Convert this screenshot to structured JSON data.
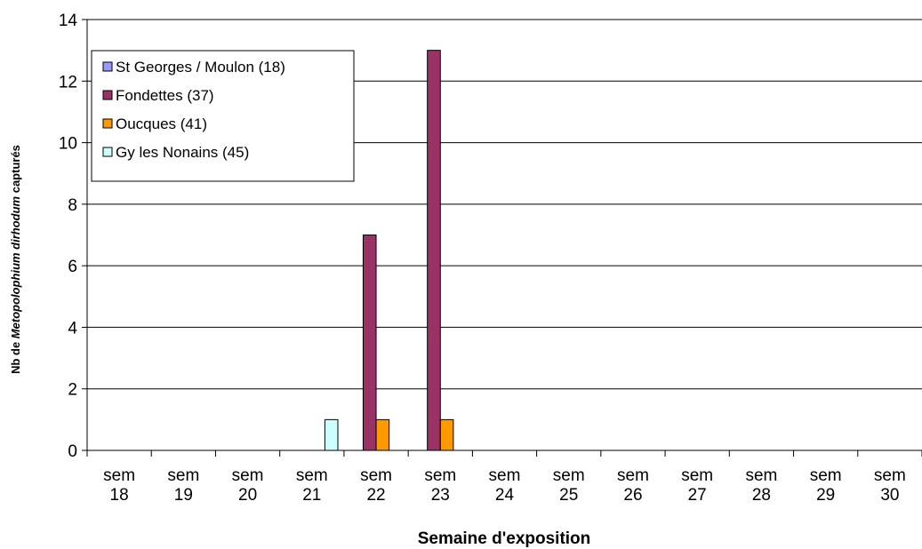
{
  "chart_data": {
    "type": "bar",
    "title": "",
    "xlabel": "Semaine d'exposition",
    "ylabel": {
      "prefix": "Nb de ",
      "italic": "Metopolophium dirhodum",
      "suffix": " capturés"
    },
    "ylim": [
      0,
      14
    ],
    "yticks": [
      0,
      2,
      4,
      6,
      8,
      10,
      12,
      14
    ],
    "grid": true,
    "legend_position": "top-left",
    "categories": [
      [
        "sem",
        "18"
      ],
      [
        "sem",
        "19"
      ],
      [
        "sem",
        "20"
      ],
      [
        "sem",
        "21"
      ],
      [
        "sem",
        "22"
      ],
      [
        "sem",
        "23"
      ],
      [
        "sem",
        "24"
      ],
      [
        "sem",
        "25"
      ],
      [
        "sem",
        "26"
      ],
      [
        "sem",
        "27"
      ],
      [
        "sem",
        "28"
      ],
      [
        "sem",
        "29"
      ],
      [
        "sem",
        "30"
      ]
    ],
    "series": [
      {
        "name": "St Georges / Moulon (18)",
        "color": "#9999ff",
        "values": [
          0,
          0,
          0,
          0,
          0,
          0,
          0,
          0,
          0,
          0,
          0,
          0,
          0
        ]
      },
      {
        "name": "Fondettes (37)",
        "color": "#993366",
        "values": [
          0,
          0,
          0,
          0,
          7,
          13,
          0,
          0,
          0,
          0,
          0,
          0,
          0
        ]
      },
      {
        "name": "Oucques (41)",
        "color": "#ff9900",
        "values": [
          0,
          0,
          0,
          0,
          1,
          1,
          0,
          0,
          0,
          0,
          0,
          0,
          0
        ]
      },
      {
        "name": "Gy les Nonains (45)",
        "color": "#ccffff",
        "values": [
          0,
          0,
          0,
          1,
          0,
          0,
          0,
          0,
          0,
          0,
          0,
          0,
          0
        ]
      }
    ]
  }
}
